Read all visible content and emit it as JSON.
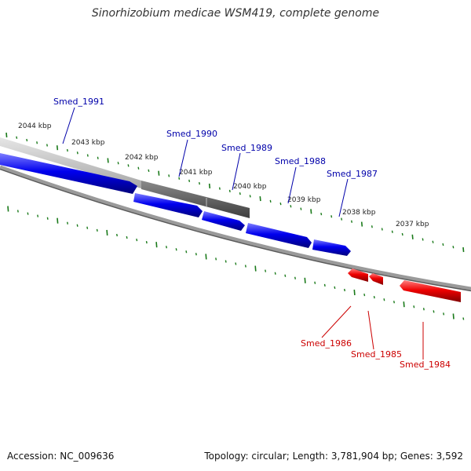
{
  "title": "Sinorhizobium medicae WSM419, complete genome",
  "footer": {
    "accession": "Accession: NC_009636",
    "summary": "Topology: circular; Length: 3,781,904 bp; Genes: 3,592"
  },
  "colors": {
    "plus_strand": "#0000ee",
    "minus_strand": "#ee0000",
    "plus_label": "#0000aa",
    "minus_label": "#cc0000",
    "ticks": "#1a7a1a",
    "backbone": "#888888"
  },
  "ruler_labels": [
    "2044 kbp",
    "2043 kbp",
    "2042 kbp",
    "2041 kbp",
    "2040 kbp",
    "2039 kbp",
    "2038 kbp",
    "2037 kbp"
  ],
  "genes": [
    {
      "name": "Smed_1991",
      "strand": "+"
    },
    {
      "name": "Smed_1990",
      "strand": "+"
    },
    {
      "name": "Smed_1989",
      "strand": "+"
    },
    {
      "name": "Smed_1988",
      "strand": "+"
    },
    {
      "name": "Smed_1987",
      "strand": "+"
    },
    {
      "name": "Smed_1986",
      "strand": "-"
    },
    {
      "name": "Smed_1985",
      "strand": "-"
    },
    {
      "name": "Smed_1984",
      "strand": "-"
    }
  ]
}
